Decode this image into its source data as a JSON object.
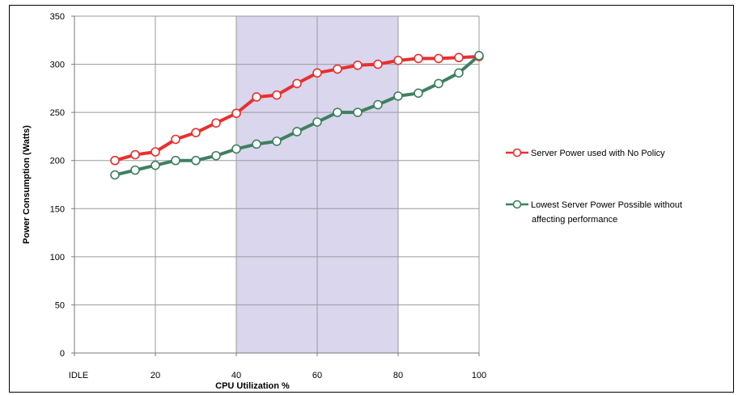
{
  "chart_data": {
    "type": "line",
    "xlabel": "CPU Utilization %",
    "ylabel": "Power Consumption (Watts)",
    "xlim": [
      0,
      100
    ],
    "ylim": [
      0,
      350
    ],
    "x_ticks": [
      {
        "value": 0,
        "label": "IDLE"
      },
      {
        "value": 20,
        "label": "20"
      },
      {
        "value": 40,
        "label": "40"
      },
      {
        "value": 60,
        "label": "60"
      },
      {
        "value": 80,
        "label": "80"
      },
      {
        "value": 100,
        "label": "100"
      }
    ],
    "y_ticks": [
      0,
      50,
      100,
      150,
      200,
      250,
      300,
      350
    ],
    "grid": true,
    "highlight_region": {
      "x_start": 40,
      "x_end": 80,
      "color": "#d9d6ee"
    },
    "legend_position": "right",
    "x": [
      10,
      15,
      20,
      25,
      30,
      35,
      40,
      45,
      50,
      55,
      60,
      65,
      70,
      75,
      80,
      85,
      90,
      95,
      100
    ],
    "series": [
      {
        "name": "Server Power used with  No  Policy",
        "color": "#e8302e",
        "values": [
          200,
          206,
          209,
          222,
          229,
          239,
          249,
          266,
          268,
          280,
          291,
          295,
          299,
          300,
          304,
          306,
          306,
          307,
          308
        ]
      },
      {
        "name": "Lowest Server Power Possible without affecting performance",
        "legend_lines": [
          "Lowest Server Power Possible without",
          "affecting performance"
        ],
        "color": "#3e8060",
        "values": [
          185,
          190,
          195,
          200,
          200,
          205,
          212,
          217,
          220,
          230,
          240,
          250,
          250,
          258,
          267,
          270,
          280,
          291,
          309
        ]
      }
    ]
  }
}
